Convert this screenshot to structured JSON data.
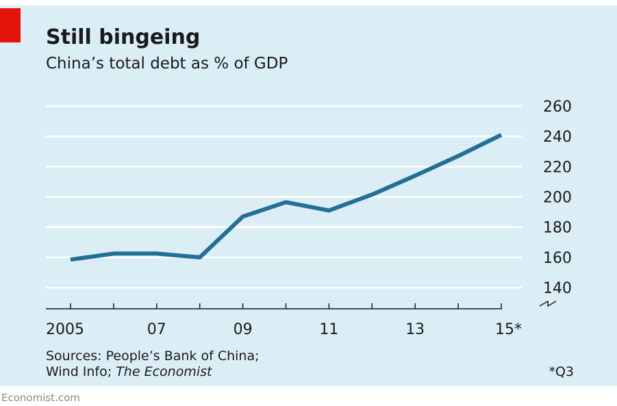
{
  "credit": "Economist.com",
  "footnote": "*Q3",
  "sources": {
    "line1": "Sources: People’s Bank of China;",
    "line2_prefix": "Wind Info; ",
    "line2_italic": "The Economist"
  },
  "colors": {
    "background": "#dbeef5",
    "accent": "#e3120b",
    "series": "#236f98"
  },
  "chart_data": {
    "type": "line",
    "title": "Still bingeing",
    "subtitle": "China’s total debt as % of GDP",
    "xlabel": "",
    "ylabel": "",
    "x": [
      2005,
      2006,
      2007,
      2008,
      2009,
      2010,
      2011,
      2012,
      2013,
      2014,
      2015
    ],
    "x_tick_values": [
      2005,
      2007,
      2009,
      2011,
      2013,
      2015
    ],
    "x_tick_labels": [
      "2005",
      "07",
      "09",
      "11",
      "13",
      "15*"
    ],
    "series": [
      {
        "values": [
          158.5,
          162.5,
          162.5,
          160,
          187,
          196.5,
          191,
          201.5,
          214,
          227,
          241
        ]
      }
    ],
    "y_ticks": [
      140,
      160,
      180,
      200,
      220,
      240,
      260
    ],
    "ylim": [
      126,
      260
    ],
    "y_axis_side": "right",
    "y_axis_break": true,
    "grid": true,
    "legend": "none"
  }
}
